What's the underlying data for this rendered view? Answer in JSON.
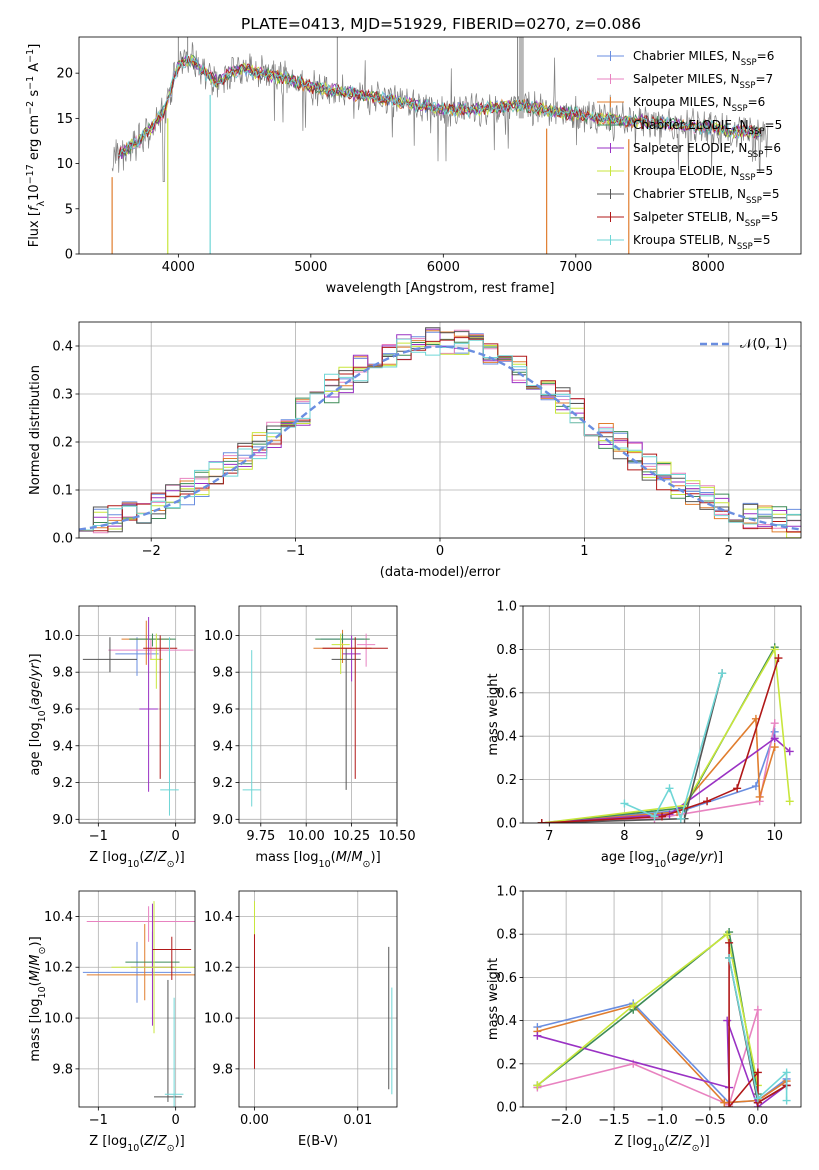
{
  "figure": {
    "title": "PLATE=0413, MJD=51929, FIBERID=0270, z=0.086"
  },
  "series_colors": {
    "Chabrier MILES": "#6a8ee0",
    "Salpeter MILES": "#e882c0",
    "Kroupa MILES": "#e07d2e",
    "Chabrier ELODIE": "#3d8b57",
    "Salpeter ELODIE": "#9a32c4",
    "Kroupa ELODIE": "#c8e63c",
    "Chabrier STELIB": "#555555",
    "Salpeter STELIB": "#b01818",
    "Kroupa STELIB": "#6fd6d6"
  },
  "chart_data": [
    {
      "id": "spectrum",
      "type": "line",
      "title": "PLATE=0413, MJD=51929, FIBERID=0270, z=0.086",
      "xlabel": "wavelength [Angstrom, rest frame]",
      "ylabel": "Flux [f_λ 10^-17 erg cm^-2 s^-1 A^-1]",
      "xlim": [
        3250,
        8700
      ],
      "ylim": [
        0,
        24
      ],
      "xticks": [
        4000,
        5000,
        6000,
        7000,
        8000
      ],
      "yticks": [
        0,
        5,
        10,
        15,
        20
      ],
      "grid": false,
      "legend_position": "top-right",
      "legend": [
        {
          "name": "Chabrier MILES",
          "nssp": "6"
        },
        {
          "name": "Salpeter MILES",
          "nssp": "7"
        },
        {
          "name": "Kroupa MILES",
          "nssp": "6"
        },
        {
          "name": "Chabrier ELODIE",
          "nssp": "5"
        },
        {
          "name": "Salpeter ELODIE",
          "nssp": "6"
        },
        {
          "name": "Kroupa ELODIE",
          "nssp": "5"
        },
        {
          "name": "Chabrier STELIB",
          "nssp": "5"
        },
        {
          "name": "Salpeter STELIB",
          "nssp": "5"
        },
        {
          "name": "Kroupa STELIB",
          "nssp": "5"
        }
      ],
      "data_envelope": {
        "x": [
          3500,
          3600,
          3700,
          3800,
          3900,
          4000,
          4100,
          4200,
          4300,
          4400,
          4500,
          4600,
          4700,
          4800,
          4900,
          5000,
          5200,
          5400,
          5600,
          5800,
          6000,
          6200,
          6400,
          6600,
          6800,
          7000,
          7200,
          7400,
          7600,
          7800,
          8000,
          8200,
          8400
        ],
        "y": [
          10.5,
          11.5,
          12.5,
          14,
          16,
          21,
          21.5,
          20,
          19,
          20,
          20.5,
          20,
          19.8,
          19.5,
          19,
          18.5,
          18,
          17.5,
          17,
          16.5,
          16,
          16,
          16.2,
          16.5,
          15.8,
          15.5,
          15,
          14.7,
          14.5,
          14.2,
          14,
          13.6,
          13.4
        ]
      },
      "model_deep_dips_x": [
        3500,
        3920,
        4240,
        6780,
        7400
      ]
    },
    {
      "id": "residuals",
      "type": "histogram",
      "xlabel": "(data-model)/error",
      "ylabel": "Normed distribution",
      "xlim": [
        -2.5,
        2.5
      ],
      "ylim": [
        0,
        0.45
      ],
      "xticks": [
        -2,
        -1,
        0,
        1,
        2
      ],
      "yticks": [
        0.0,
        0.1,
        0.2,
        0.3,
        0.4
      ],
      "grid": true,
      "legend_position": "top-right",
      "legend": [
        {
          "name": "𝒩(0, 1)"
        }
      ],
      "bin_width": 0.1,
      "reference_curve": "normal(0,1) pdf"
    },
    {
      "id": "age-vs-z",
      "type": "errorbar",
      "xlabel": "Z [log10(Z/Z_sun)]",
      "ylabel": "age  [log10(age/yr)]",
      "xlim": [
        -1.25,
        0.25
      ],
      "ylim": [
        8.98,
        10.16
      ],
      "xticks": [
        -1,
        0
      ],
      "yticks": [
        9.0,
        9.2,
        9.4,
        9.6,
        9.8,
        10.0
      ],
      "grid": true,
      "points": [
        {
          "series": "Chabrier MILES",
          "x": -0.5,
          "xerr": 0.28,
          "y": 9.9,
          "yerr_lo": 0.12,
          "yerr_hi": 0.09
        },
        {
          "series": "Salpeter MILES",
          "x": -0.32,
          "xerr": 0.55,
          "y": 9.92,
          "yerr_lo": 0.05,
          "yerr_hi": 0.06
        },
        {
          "series": "Kroupa MILES",
          "x": -0.38,
          "xerr": 0.32,
          "y": 9.98,
          "yerr_lo": 0.14,
          "yerr_hi": 0.1
        },
        {
          "series": "Chabrier ELODIE",
          "x": -0.3,
          "xerr": 0.3,
          "y": 9.98,
          "yerr_lo": 0.04,
          "yerr_hi": 0.03
        },
        {
          "series": "Salpeter ELODIE",
          "x": -0.35,
          "xerr": 0.12,
          "y": 9.6,
          "yerr_lo": 0.45,
          "yerr_hi": 0.5
        },
        {
          "series": "Kroupa ELODIE",
          "x": -0.25,
          "xerr": 0.08,
          "y": 9.87,
          "yerr_lo": 0.16,
          "yerr_hi": 0.14
        },
        {
          "series": "Chabrier STELIB",
          "x": -0.85,
          "xerr": 0.35,
          "y": 9.87,
          "yerr_lo": 0.07,
          "yerr_hi": 0.12
        },
        {
          "series": "Salpeter STELIB",
          "x": -0.2,
          "xerr": 0.22,
          "y": 9.93,
          "yerr_lo": 0.71,
          "yerr_hi": 0.07
        },
        {
          "series": "Kroupa STELIB",
          "x": -0.08,
          "xerr": 0.12,
          "y": 9.16,
          "yerr_lo": 0.14,
          "yerr_hi": 0.83
        }
      ]
    },
    {
      "id": "age-vs-mass",
      "type": "errorbar",
      "xlabel": "mass [log10(M/M_sun)]",
      "ylabel": "",
      "xlim": [
        9.63,
        10.5
      ],
      "ylim": [
        8.98,
        10.16
      ],
      "xticks": [
        9.75,
        10.0,
        10.25,
        10.5
      ],
      "xticklabels": [
        "9.75",
        "10.00",
        "10.25",
        "10.50"
      ],
      "yticks": [
        9.0,
        9.2,
        9.4,
        9.6,
        9.8,
        10.0
      ],
      "grid": true,
      "points": [
        {
          "series": "Chabrier MILES",
          "x": 10.2,
          "xerr": 0.12,
          "y": 9.98,
          "yerr_lo": 0.05,
          "yerr_hi": 0.05
        },
        {
          "series": "Salpeter MILES",
          "x": 10.33,
          "xerr": 0.05,
          "y": 9.95,
          "yerr_lo": 0.12,
          "yerr_hi": 0.06
        },
        {
          "series": "Kroupa MILES",
          "x": 10.2,
          "xerr": 0.16,
          "y": 9.93,
          "yerr_lo": 0.08,
          "yerr_hi": 0.1
        },
        {
          "series": "Chabrier ELODIE",
          "x": 10.2,
          "xerr": 0.15,
          "y": 9.98,
          "yerr_lo": 0.02,
          "yerr_hi": 0.03
        },
        {
          "series": "Salpeter ELODIE",
          "x": 10.25,
          "xerr": 0.05,
          "y": 9.9,
          "yerr_lo": 0.15,
          "yerr_hi": 0.1
        },
        {
          "series": "Kroupa ELODIE",
          "x": 10.19,
          "xerr": 0.05,
          "y": 9.95,
          "yerr_lo": 0.16,
          "yerr_hi": 0.06
        },
        {
          "series": "Chabrier STELIB",
          "x": 10.22,
          "xerr": 0.08,
          "y": 9.87,
          "yerr_lo": 0.71,
          "yerr_hi": 0.06
        },
        {
          "series": "Salpeter STELIB",
          "x": 10.27,
          "xerr": 0.18,
          "y": 9.93,
          "yerr_lo": 0.71,
          "yerr_hi": 0.06
        },
        {
          "series": "Kroupa STELIB",
          "x": 9.7,
          "xerr": 0.05,
          "y": 9.16,
          "yerr_lo": 0.09,
          "yerr_hi": 0.76
        }
      ]
    },
    {
      "id": "weight-vs-age",
      "type": "line",
      "xlabel": "age  [log10(age/yr)]",
      "ylabel": "mass weight",
      "xlim": [
        6.65,
        10.35
      ],
      "ylim": [
        0,
        1.0
      ],
      "xticks": [
        7,
        8,
        9,
        10
      ],
      "yticks": [
        0.0,
        0.2,
        0.4,
        0.6,
        0.8,
        1.0
      ],
      "grid": true,
      "series": [
        {
          "name": "Chabrier MILES",
          "points": [
            [
              6.9,
              0.0
            ],
            [
              8.8,
              0.06
            ],
            [
              9.75,
              0.17
            ],
            [
              10.0,
              0.42
            ]
          ]
        },
        {
          "name": "Salpeter MILES",
          "points": [
            [
              6.9,
              0.0
            ],
            [
              8.4,
              0.02
            ],
            [
              9.8,
              0.1
            ],
            [
              10.0,
              0.46
            ]
          ]
        },
        {
          "name": "Kroupa MILES",
          "points": [
            [
              6.9,
              0.0
            ],
            [
              8.7,
              0.05
            ],
            [
              9.75,
              0.48
            ],
            [
              9.8,
              0.12
            ],
            [
              10.0,
              0.35
            ]
          ]
        },
        {
          "name": "Chabrier ELODIE",
          "points": [
            [
              6.9,
              0.0
            ],
            [
              8.8,
              0.07
            ],
            [
              10.0,
              0.81
            ]
          ]
        },
        {
          "name": "Salpeter ELODIE",
          "points": [
            [
              6.9,
              0.0
            ],
            [
              8.6,
              0.04
            ],
            [
              10.0,
              0.39
            ],
            [
              10.2,
              0.33
            ]
          ]
        },
        {
          "name": "Kroupa ELODIE",
          "points": [
            [
              6.9,
              0.0
            ],
            [
              8.8,
              0.08
            ],
            [
              10.0,
              0.8
            ],
            [
              10.2,
              0.1
            ]
          ]
        },
        {
          "name": "Chabrier STELIB",
          "points": [
            [
              6.9,
              0.0
            ],
            [
              8.8,
              0.02
            ],
            [
              9.3,
              0.69
            ]
          ]
        },
        {
          "name": "Salpeter STELIB",
          "points": [
            [
              6.9,
              0.0
            ],
            [
              8.5,
              0.03
            ],
            [
              9.1,
              0.1
            ],
            [
              9.5,
              0.16
            ],
            [
              10.05,
              0.76
            ]
          ]
        },
        {
          "name": "Kroupa STELIB",
          "points": [
            [
              8.0,
              0.09
            ],
            [
              8.4,
              0.03
            ],
            [
              8.6,
              0.16
            ],
            [
              8.75,
              0.02
            ],
            [
              9.3,
              0.69
            ]
          ]
        }
      ]
    },
    {
      "id": "mass-vs-z",
      "type": "errorbar",
      "xlabel": "Z [log10(Z/Z_sun)]",
      "ylabel": "mass [log10(M/M_sun)]",
      "xlim": [
        -1.25,
        0.25
      ],
      "ylim": [
        9.65,
        10.5
      ],
      "xticks": [
        -1,
        0
      ],
      "yticks": [
        9.8,
        10.0,
        10.2,
        10.4
      ],
      "grid": true,
      "points": [
        {
          "series": "Chabrier MILES",
          "x": -0.5,
          "xerr": 0.7,
          "y": 10.18,
          "yerr_lo": 0.12,
          "yerr_hi": 0.12
        },
        {
          "series": "Salpeter MILES",
          "x": -0.35,
          "xerr": 0.8,
          "y": 10.38,
          "yerr_lo": 0.08,
          "yerr_hi": 0.06
        },
        {
          "series": "Kroupa MILES",
          "x": -0.4,
          "xerr": 0.75,
          "y": 10.17,
          "yerr_lo": 0.1,
          "yerr_hi": 0.2
        },
        {
          "series": "Chabrier ELODIE",
          "x": -0.3,
          "xerr": 0.35,
          "y": 10.22,
          "yerr_lo": 0.04,
          "yerr_hi": 0.12
        },
        {
          "series": "Salpeter ELODIE",
          "x": -0.3,
          "xerr": 0.28,
          "y": 10.2,
          "yerr_lo": 0.23,
          "yerr_hi": 0.25
        },
        {
          "series": "Kroupa ELODIE",
          "x": -0.28,
          "xerr": 0.55,
          "y": 10.2,
          "yerr_lo": 0.26,
          "yerr_hi": 0.26
        },
        {
          "series": "Chabrier STELIB",
          "x": -0.1,
          "xerr": 0.18,
          "y": 9.69,
          "yerr_lo": 0.02,
          "yerr_hi": 0.46
        },
        {
          "series": "Salpeter STELIB",
          "x": -0.05,
          "xerr": 0.25,
          "y": 10.27,
          "yerr_lo": 0.12,
          "yerr_hi": 0.05
        },
        {
          "series": "Kroupa STELIB",
          "x": -0.02,
          "xerr": 0.12,
          "y": 9.7,
          "yerr_lo": 0.08,
          "yerr_hi": 0.38
        }
      ]
    },
    {
      "id": "mass-vs-ebv",
      "type": "errorbar",
      "xlabel": "E(B-V)",
      "ylabel": "",
      "xlim": [
        -0.0015,
        0.0138
      ],
      "ylim": [
        9.65,
        10.5
      ],
      "xticks": [
        0.0,
        0.01
      ],
      "xticklabels": [
        "0.00",
        "0.01"
      ],
      "yticks": [
        9.8,
        10.0,
        10.2,
        10.4
      ],
      "grid": true,
      "points": [
        {
          "series": "Kroupa ELODIE",
          "x": 0.0,
          "xerr": 0.0,
          "y": 10.4,
          "yerr_lo": 0.08,
          "yerr_hi": 0.06
        },
        {
          "series": "Salpeter STELIB",
          "x": 0.0,
          "xerr": 0.0,
          "y": 10.05,
          "yerr_lo": 0.25,
          "yerr_hi": 0.28
        },
        {
          "series": "Chabrier STELIB",
          "x": 0.013,
          "xerr": 0.0,
          "y": 10.05,
          "yerr_lo": 0.33,
          "yerr_hi": 0.23
        },
        {
          "series": "Kroupa STELIB",
          "x": 0.0133,
          "xerr": 0.0,
          "y": 9.9,
          "yerr_lo": 0.2,
          "yerr_hi": 0.22
        }
      ]
    },
    {
      "id": "weight-vs-z",
      "type": "line",
      "xlabel": "Z [log10(Z/Z_sun)]",
      "ylabel": "mass weight",
      "xlim": [
        -2.45,
        0.45
      ],
      "ylim": [
        0,
        1.0
      ],
      "xticks": [
        -2.0,
        -1.5,
        -1.0,
        -0.5,
        0.0
      ],
      "yticks": [
        0.0,
        0.2,
        0.4,
        0.6,
        0.8,
        1.0
      ],
      "grid": true,
      "series": [
        {
          "name": "Chabrier MILES",
          "points": [
            [
              -2.3,
              0.37
            ],
            [
              -1.3,
              0.48
            ],
            [
              -0.3,
              0.02
            ],
            [
              0.0,
              0.03
            ],
            [
              0.3,
              0.13
            ]
          ]
        },
        {
          "name": "Salpeter MILES",
          "points": [
            [
              -2.3,
              0.09
            ],
            [
              -1.3,
              0.2
            ],
            [
              -0.3,
              0.01
            ],
            [
              0.0,
              0.45
            ],
            [
              0.0,
              0.02
            ]
          ]
        },
        {
          "name": "Kroupa MILES",
          "points": [
            [
              -2.3,
              0.35
            ],
            [
              -1.3,
              0.47
            ],
            [
              -0.35,
              0.02
            ],
            [
              0.0,
              0.03
            ],
            [
              0.3,
              0.12
            ]
          ]
        },
        {
          "name": "Chabrier ELODIE",
          "points": [
            [
              -2.3,
              0.1
            ],
            [
              -1.3,
              0.45
            ],
            [
              -0.3,
              0.81
            ],
            [
              0.0,
              0.06
            ]
          ]
        },
        {
          "name": "Salpeter ELODIE",
          "points": [
            [
              -2.3,
              0.33
            ],
            [
              -0.3,
              0.09
            ],
            [
              -0.32,
              0.4
            ],
            [
              0.0,
              0.0
            ],
            [
              0.3,
              0.1
            ]
          ]
        },
        {
          "name": "Kroupa ELODIE",
          "points": [
            [
              -2.3,
              0.1
            ],
            [
              -1.3,
              0.47
            ],
            [
              -0.32,
              0.8
            ],
            [
              0.0,
              0.1
            ]
          ]
        },
        {
          "name": "Chabrier STELIB",
          "points": [
            [
              -0.3,
              0.69
            ],
            [
              0.0,
              0.02
            ],
            [
              0.3,
              0.1
            ]
          ]
        },
        {
          "name": "Salpeter STELIB",
          "points": [
            [
              -0.3,
              0.76
            ],
            [
              -0.3,
              0.0
            ],
            [
              0.0,
              0.16
            ],
            [
              0.0,
              0.02
            ],
            [
              0.3,
              0.1
            ]
          ]
        },
        {
          "name": "Kroupa STELIB",
          "points": [
            [
              -0.3,
              0.69
            ],
            [
              0.0,
              0.04
            ],
            [
              0.3,
              0.16
            ],
            [
              0.3,
              0.03
            ]
          ]
        }
      ]
    }
  ]
}
